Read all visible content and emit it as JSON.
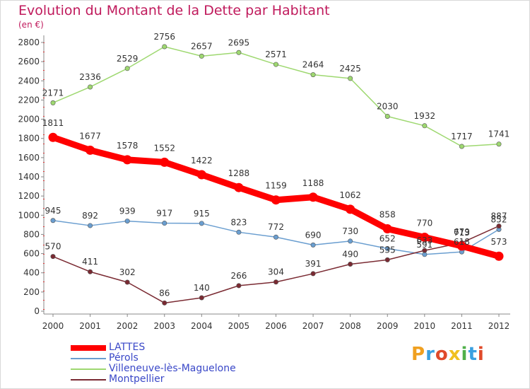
{
  "title": "Evolution du Montant de la Dette par Habitant",
  "subtitle": "(en €)",
  "logo_text": "Proxiti",
  "logo_colors": [
    "#f0a020",
    "#3aa0e0",
    "#e04a2a",
    "#f0c020",
    "#50b04a",
    "#3aa0e0",
    "#e04a2a"
  ],
  "chart_data": {
    "type": "line",
    "x": [
      "2000",
      "2001",
      "2002",
      "2003",
      "2004",
      "2005",
      "2006",
      "2007",
      "2008",
      "2009",
      "2010",
      "2011",
      "2012"
    ],
    "ylim": [
      0,
      2800
    ],
    "yticks": [
      0,
      200,
      400,
      600,
      800,
      1000,
      1200,
      1400,
      1600,
      1800,
      2000,
      2200,
      2400,
      2600,
      2800
    ],
    "grid": false,
    "legend_position": "bottom-left",
    "series": [
      {
        "name": "LATTES",
        "color": "#ff0000",
        "values": [
          1811,
          1677,
          1578,
          1552,
          1422,
          1288,
          1159,
          1188,
          1062,
          858,
          770,
          679,
          573
        ],
        "labels": [
          "1811",
          "1677",
          "1578",
          "1552",
          "1422",
          "1288",
          "1159",
          "1188",
          "1062",
          "858",
          "770",
          "679",
          "573"
        ],
        "emphasis": true
      },
      {
        "name": "Pérols",
        "color": "#6a9ed0",
        "values": [
          945,
          892,
          939,
          917,
          915,
          823,
          772,
          690,
          730,
          652,
          591,
          618,
          852
        ],
        "labels": [
          "945",
          "892",
          "939",
          "917",
          "915",
          "823",
          "772",
          "690",
          "730",
          "652",
          "591",
          "618",
          "852"
        ],
        "emphasis": false
      },
      {
        "name": "Villeneuve-lès-Maguelone",
        "color": "#9ed870",
        "values": [
          2171,
          2336,
          2529,
          2756,
          2657,
          2695,
          2571,
          2464,
          2425,
          2030,
          1932,
          1717,
          1741
        ],
        "labels": [
          "2171",
          "2336",
          "2529",
          "2756",
          "2657",
          "2695",
          "2571",
          "2464",
          "2425",
          "2030",
          "1932",
          "1717",
          "1741"
        ],
        "emphasis": false
      },
      {
        "name": "Montpellier",
        "color": "#7a2a32",
        "values": [
          570,
          411,
          302,
          86,
          140,
          266,
          304,
          391,
          490,
          535,
          633,
          713,
          887
        ],
        "labels": [
          "570",
          "411",
          "302",
          "86",
          "140",
          "266",
          "304",
          "391",
          "490",
          "535",
          "633",
          "713",
          "887"
        ],
        "emphasis": false
      }
    ]
  }
}
